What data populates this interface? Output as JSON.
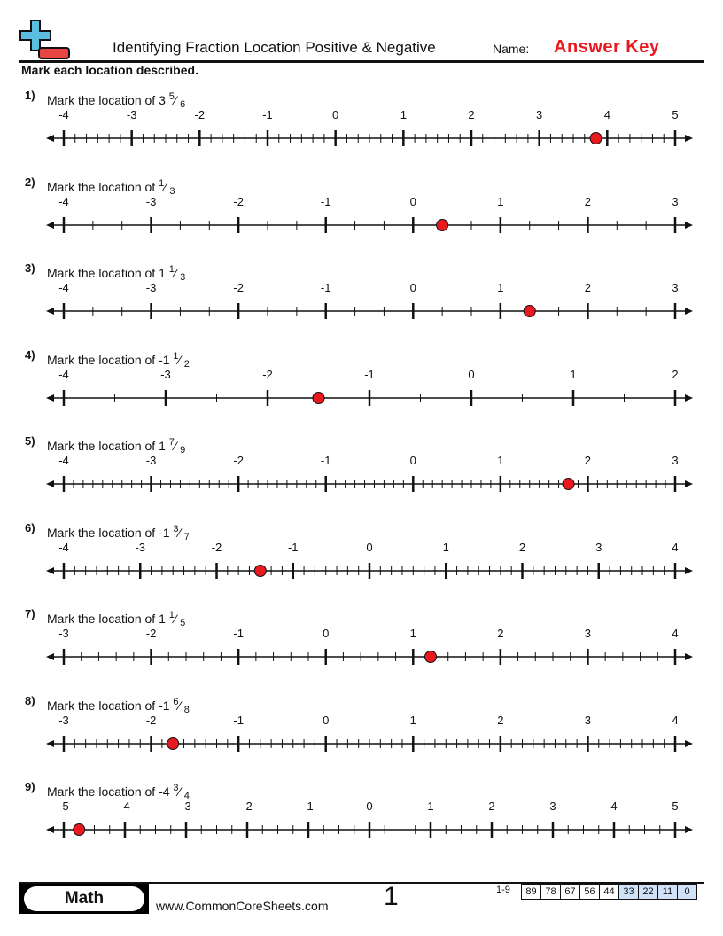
{
  "header": {
    "title": "Identifying Fraction Location Positive & Negative",
    "name_label": "Name:",
    "answer_key": "Answer Key",
    "instructions": "Mark each location described."
  },
  "colors": {
    "marker": "#e8191f",
    "logo_blue": "#5bbde0",
    "logo_red": "#e84545",
    "score_highlight": "#cfe2f7"
  },
  "problems": [
    {
      "num": "1)",
      "prompt": "Mark the location of",
      "whole": "3",
      "numerator": "5",
      "denominator": "6",
      "min": -4,
      "max": 5,
      "divisions": 6,
      "answer": 3.8333
    },
    {
      "num": "2)",
      "prompt": "Mark the location of",
      "whole": "",
      "numerator": "1",
      "denominator": "3",
      "min": -4,
      "max": 3,
      "divisions": 3,
      "answer": 0.3333
    },
    {
      "num": "3)",
      "prompt": "Mark the location of",
      "whole": "1",
      "numerator": "1",
      "denominator": "3",
      "min": -4,
      "max": 3,
      "divisions": 3,
      "answer": 1.3333
    },
    {
      "num": "4)",
      "prompt": "Mark the location of",
      "whole": "-1",
      "numerator": "1",
      "denominator": "2",
      "min": -4,
      "max": 2,
      "divisions": 2,
      "answer": -1.5
    },
    {
      "num": "5)",
      "prompt": "Mark the location of",
      "whole": "1",
      "numerator": "7",
      "denominator": "9",
      "min": -4,
      "max": 3,
      "divisions": 9,
      "answer": 1.7778
    },
    {
      "num": "6)",
      "prompt": "Mark the location of",
      "whole": "-1",
      "numerator": "3",
      "denominator": "7",
      "min": -4,
      "max": 4,
      "divisions": 7,
      "answer": -1.4286
    },
    {
      "num": "7)",
      "prompt": "Mark the location of",
      "whole": "1",
      "numerator": "1",
      "denominator": "5",
      "min": -3,
      "max": 4,
      "divisions": 5,
      "answer": 1.2
    },
    {
      "num": "8)",
      "prompt": "Mark the location of",
      "whole": "-1",
      "numerator": "6",
      "denominator": "8",
      "min": -3,
      "max": 4,
      "divisions": 8,
      "answer": -1.75
    },
    {
      "num": "9)",
      "prompt": "Mark the location of",
      "whole": "-4",
      "numerator": "3",
      "denominator": "4",
      "min": -5,
      "max": 5,
      "divisions": 4,
      "answer": -4.75
    }
  ],
  "footer": {
    "subject": "Math",
    "site": "www.CommonCoreSheets.com",
    "page": "1",
    "range": "1-9",
    "scores": [
      "89",
      "78",
      "67",
      "56",
      "44",
      "33",
      "22",
      "11",
      "0"
    ],
    "highlighted_from_index": 5
  }
}
